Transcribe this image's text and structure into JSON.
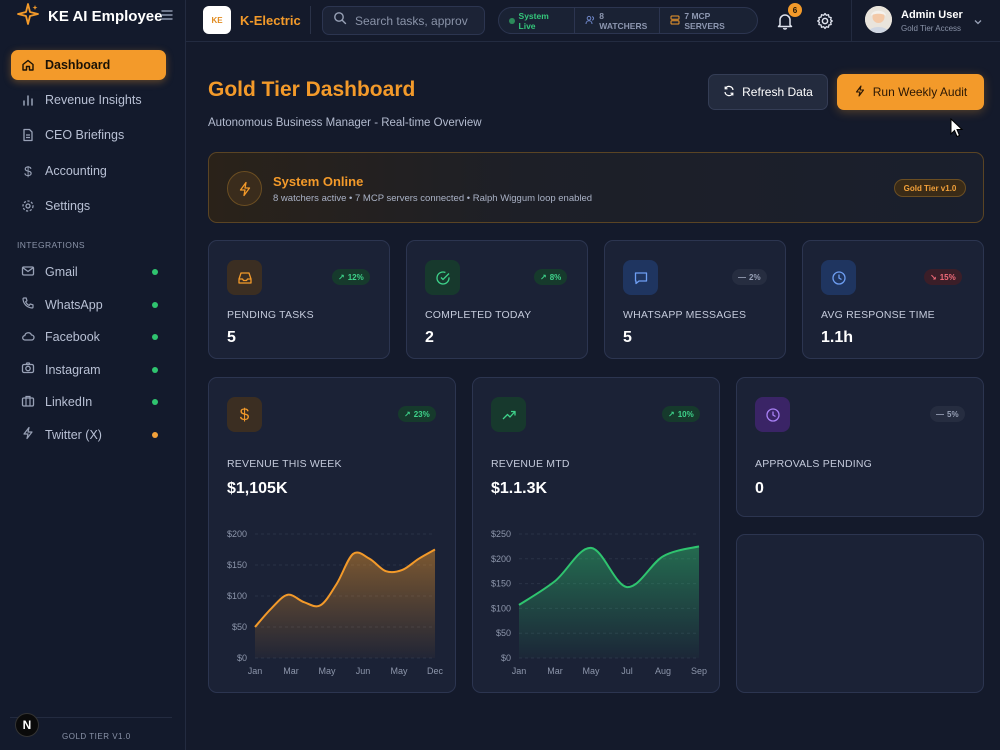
{
  "app": {
    "name": "KE AI Employee",
    "version": "GOLD TIER V1.0",
    "n_badge": "N"
  },
  "sidebar": {
    "items": [
      {
        "label": "Dashboard",
        "icon": "home-icon",
        "active": true
      },
      {
        "label": "Revenue Insights",
        "icon": "bar-chart-icon"
      },
      {
        "label": "CEO Briefings",
        "icon": "document-icon"
      },
      {
        "label": "Accounting",
        "icon": "dollar-icon"
      },
      {
        "label": "Settings",
        "icon": "gear-icon"
      }
    ],
    "integrations_label": "INTEGRATIONS",
    "integrations": [
      {
        "label": "Gmail",
        "icon": "mail-icon",
        "status_color": "#2fc46f"
      },
      {
        "label": "WhatsApp",
        "icon": "phone-icon",
        "status_color": "#2fc46f"
      },
      {
        "label": "Facebook",
        "icon": "cloud-icon",
        "status_color": "#2fc46f"
      },
      {
        "label": "Instagram",
        "icon": "camera-icon",
        "status_color": "#2fc46f"
      },
      {
        "label": "LinkedIn",
        "icon": "briefcase-icon",
        "status_color": "#2fc46f"
      },
      {
        "label": "Twitter (X)",
        "icon": "bolt-icon",
        "status_color": "#f2a13a"
      }
    ]
  },
  "topbar": {
    "company": "K-Electric",
    "logo_text": "KE",
    "search_placeholder": "Search tasks, approv",
    "system_status": "System Live",
    "watchers": "8 WATCHERS",
    "mcp_servers": "7 MCP SERVERS",
    "notification_count": "6",
    "user": {
      "name": "Admin User",
      "role": "Gold Tier Access"
    }
  },
  "page": {
    "title": "Gold Tier Dashboard",
    "subtitle": "Autonomous Business Manager - Real-time Overview",
    "refresh_label": "Refresh Data",
    "audit_label": "Run Weekly Audit"
  },
  "banner": {
    "title": "System Online",
    "description": "8 watchers active • 7 MCP servers connected • Ralph Wiggum loop enabled",
    "badge": "Gold Tier v1.0"
  },
  "stats": [
    {
      "label": "PENDING TASKS",
      "value": "5",
      "change": "12%",
      "trend": "up",
      "icon": "inbox-icon"
    },
    {
      "label": "COMPLETED TODAY",
      "value": "2",
      "change": "8%",
      "trend": "up",
      "icon": "check-circle-icon"
    },
    {
      "label": "WHATSAPP MESSAGES",
      "value": "5",
      "change": "2%",
      "trend": "flat",
      "icon": "message-icon"
    },
    {
      "label": "AVG RESPONSE TIME",
      "value": "1.1h",
      "change": "15%",
      "trend": "down",
      "icon": "clock-icon"
    }
  ],
  "revenue_week": {
    "label": "REVENUE THIS WEEK",
    "value": "$1,105K",
    "change": "23%",
    "trend": "up",
    "icon": "dollar-icon"
  },
  "revenue_mtd": {
    "label": "REVENUE MTD",
    "value": "$1.1.3K",
    "change": "10%",
    "trend": "up",
    "icon": "trending-up-icon"
  },
  "approvals": {
    "label": "APPROVALS PENDING",
    "value": "0",
    "change": "5%",
    "trend": "flat",
    "icon": "clock-icon"
  },
  "chart_data": [
    {
      "type": "area",
      "x": [
        "Jan",
        "Feb",
        "Mar",
        "Apr",
        "May",
        "Jun",
        "Jul",
        "Aug",
        "Sep",
        "Oct",
        "Nov",
        "Dec"
      ],
      "xticks": [
        "Jan",
        "Mar",
        "May",
        "Jun",
        "May",
        "Dec"
      ],
      "yticks": [
        "$200",
        "$150",
        "$100",
        "$50",
        "$0"
      ],
      "ylim": [
        0,
        200
      ],
      "values": [
        50,
        80,
        102,
        90,
        85,
        120,
        168,
        160,
        140,
        142,
        160,
        175
      ],
      "color": "#f39a2a"
    },
    {
      "type": "area",
      "x": [
        "Jan",
        "Mar",
        "May",
        "Jul",
        "Aug",
        "Sep"
      ],
      "xticks": [
        "Jan",
        "Mar",
        "May",
        "Jul",
        "Aug",
        "Sep"
      ],
      "yticks": [
        "$250",
        "$200",
        "$150",
        "$100",
        "$50",
        "$0"
      ],
      "ylim": [
        0,
        250
      ],
      "values": [
        107,
        155,
        222,
        143,
        205,
        225
      ],
      "color": "#2fc46f"
    }
  ]
}
